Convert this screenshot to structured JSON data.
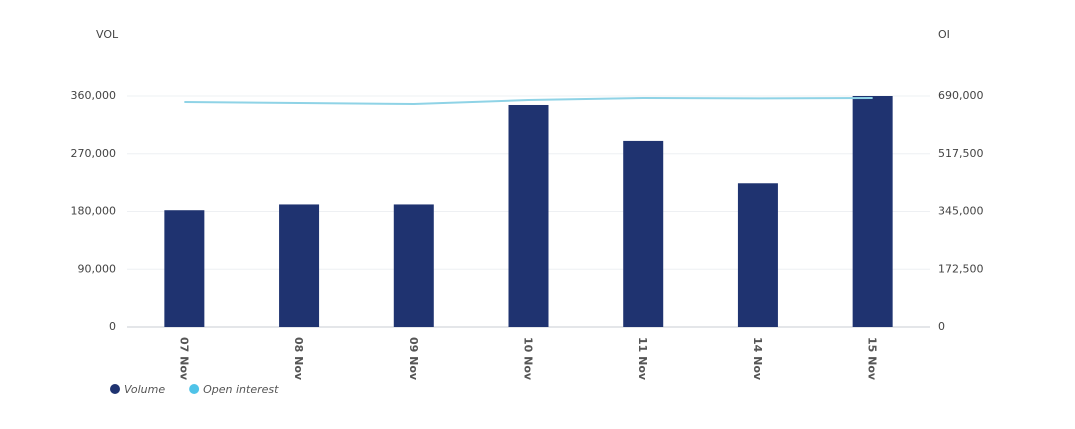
{
  "chart_data": {
    "type": "bar",
    "y_label": "VOL",
    "y2_label": "OI",
    "categories": [
      "07 Nov",
      "08 Nov",
      "09 Nov",
      "10 Nov",
      "11 Nov",
      "14 Nov",
      "15 Nov"
    ],
    "series": [
      {
        "name": "Volume",
        "type": "bar",
        "color": "#1f3370",
        "values": [
          182000,
          191000,
          191000,
          346000,
          290000,
          224000,
          360000
        ]
      },
      {
        "name": "Open interest",
        "type": "line",
        "axis": "y2",
        "color": "#8fd3e6",
        "legend_color": "#4fc3e8",
        "values": [
          672000,
          669000,
          666000,
          678000,
          684000,
          683000,
          684000
        ]
      }
    ],
    "ylim": [
      0,
      360000
    ],
    "yticks": [
      0,
      {
        "value": 90000,
        "label": "90,000"
      },
      {
        "value": 180000,
        "label": "180,000"
      },
      {
        "value": 270000,
        "label": "270,000"
      },
      {
        "value": 360000,
        "label": "360,000"
      }
    ],
    "y2lim": [
      0,
      690000
    ],
    "y2ticks": [
      0,
      {
        "value": 172500,
        "label": "172,500"
      },
      {
        "value": 345000,
        "label": "345,000"
      },
      {
        "value": 517500,
        "label": "517,500"
      },
      {
        "value": 690000,
        "label": "690,000"
      }
    ],
    "grid": true
  }
}
